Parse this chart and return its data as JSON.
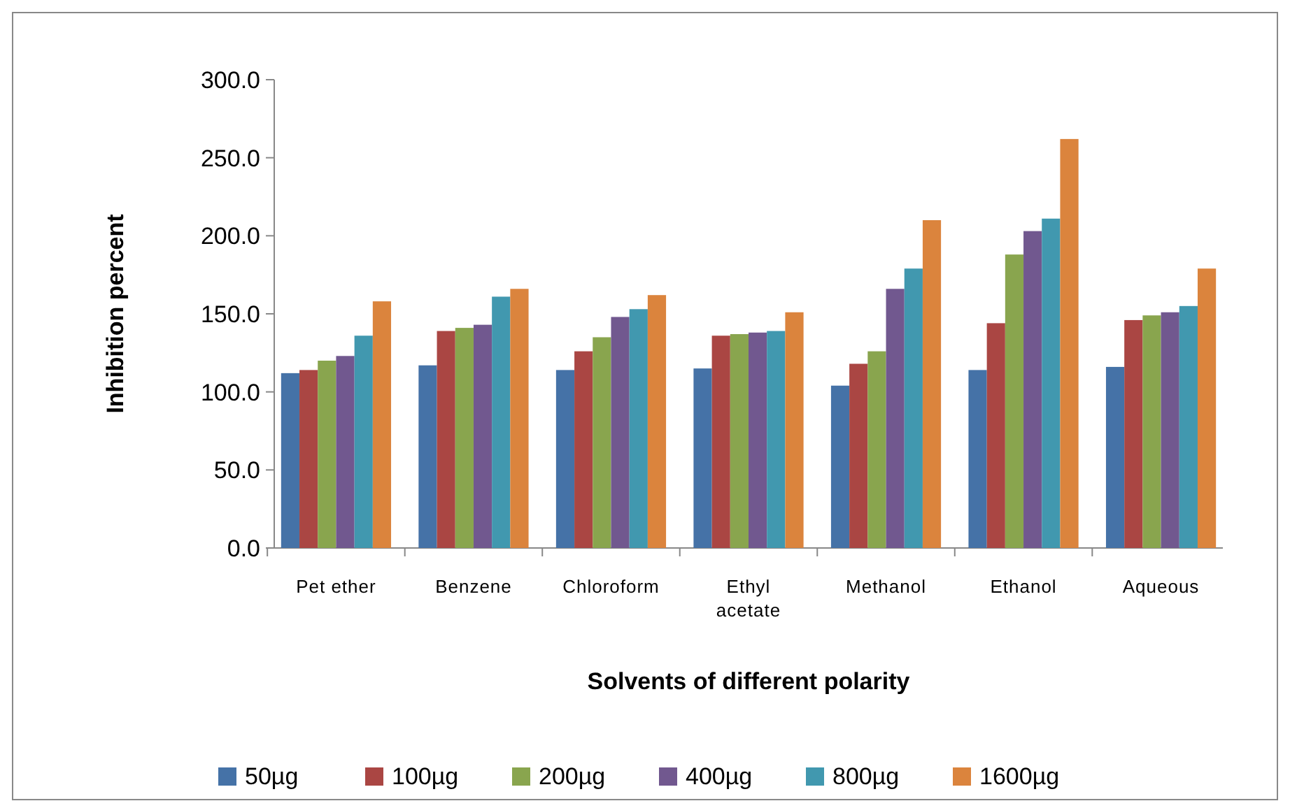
{
  "chart_data": {
    "type": "bar",
    "xlabel": "Solvents of different polarity",
    "ylabel": "Inhibition percent",
    "categories": [
      "Pet ether",
      "Benzene",
      "Chloroform",
      "Ethyl acetate",
      "Methanol",
      "Ethanol",
      "Aqueous"
    ],
    "series": [
      {
        "name": "50µg",
        "color": "#4572a7",
        "values": [
          112,
          117,
          114,
          115,
          104,
          114,
          116
        ]
      },
      {
        "name": "100µg",
        "color": "#aa4643",
        "values": [
          114,
          139,
          126,
          136,
          118,
          144,
          146
        ]
      },
      {
        "name": "200µg",
        "color": "#89a54e",
        "values": [
          120,
          141,
          135,
          137,
          126,
          188,
          149
        ]
      },
      {
        "name": "400µg",
        "color": "#71588f",
        "values": [
          123,
          143,
          148,
          138,
          166,
          203,
          151
        ]
      },
      {
        "name": "800µg",
        "color": "#4198af",
        "values": [
          136,
          161,
          153,
          139,
          179,
          211,
          155
        ]
      },
      {
        "name": "1600µg",
        "color": "#db843d",
        "values": [
          158,
          166,
          162,
          151,
          210,
          262,
          179
        ]
      }
    ],
    "ylim": [
      0,
      300
    ],
    "yticks": [
      {
        "value": 0,
        "label": "0.0"
      },
      {
        "value": 50,
        "label": "50.0"
      },
      {
        "value": 100,
        "label": "100.0"
      },
      {
        "value": 150,
        "label": "150.0"
      },
      {
        "value": 200,
        "label": "200.0"
      },
      {
        "value": 250,
        "label": "250.0"
      },
      {
        "value": 300,
        "label": "300.0"
      }
    ],
    "grid": false,
    "legend": "bottom"
  }
}
